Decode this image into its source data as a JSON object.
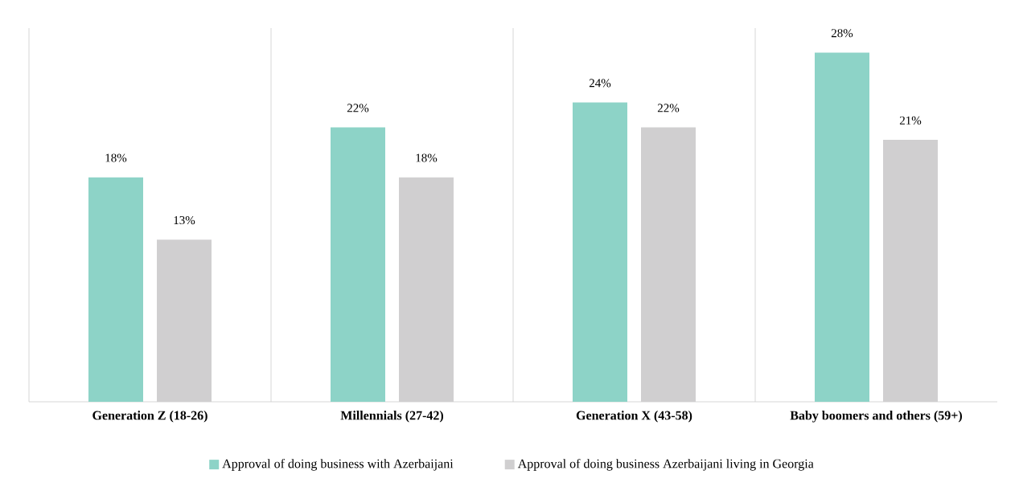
{
  "chart_data": {
    "type": "bar",
    "categories": [
      "Generation Z (18-26)",
      "Millennials (27-42)",
      "Generation X  (43-58)",
      "Baby boomers and others (59+)"
    ],
    "series": [
      {
        "name": "Approval of doing business with Azerbaijani",
        "color": "#8dd3c7",
        "values": [
          18,
          22,
          24,
          28
        ],
        "value_labels": [
          "18%",
          "22%",
          "24%",
          "28%"
        ]
      },
      {
        "name": "Approval of doing business Azerbaijani living in Georgia",
        "color": "#d0cfd0",
        "values": [
          13,
          18,
          22,
          21
        ],
        "value_labels": [
          "13%",
          "18%",
          "22%",
          "21%"
        ]
      }
    ],
    "legend": "bottom"
  }
}
